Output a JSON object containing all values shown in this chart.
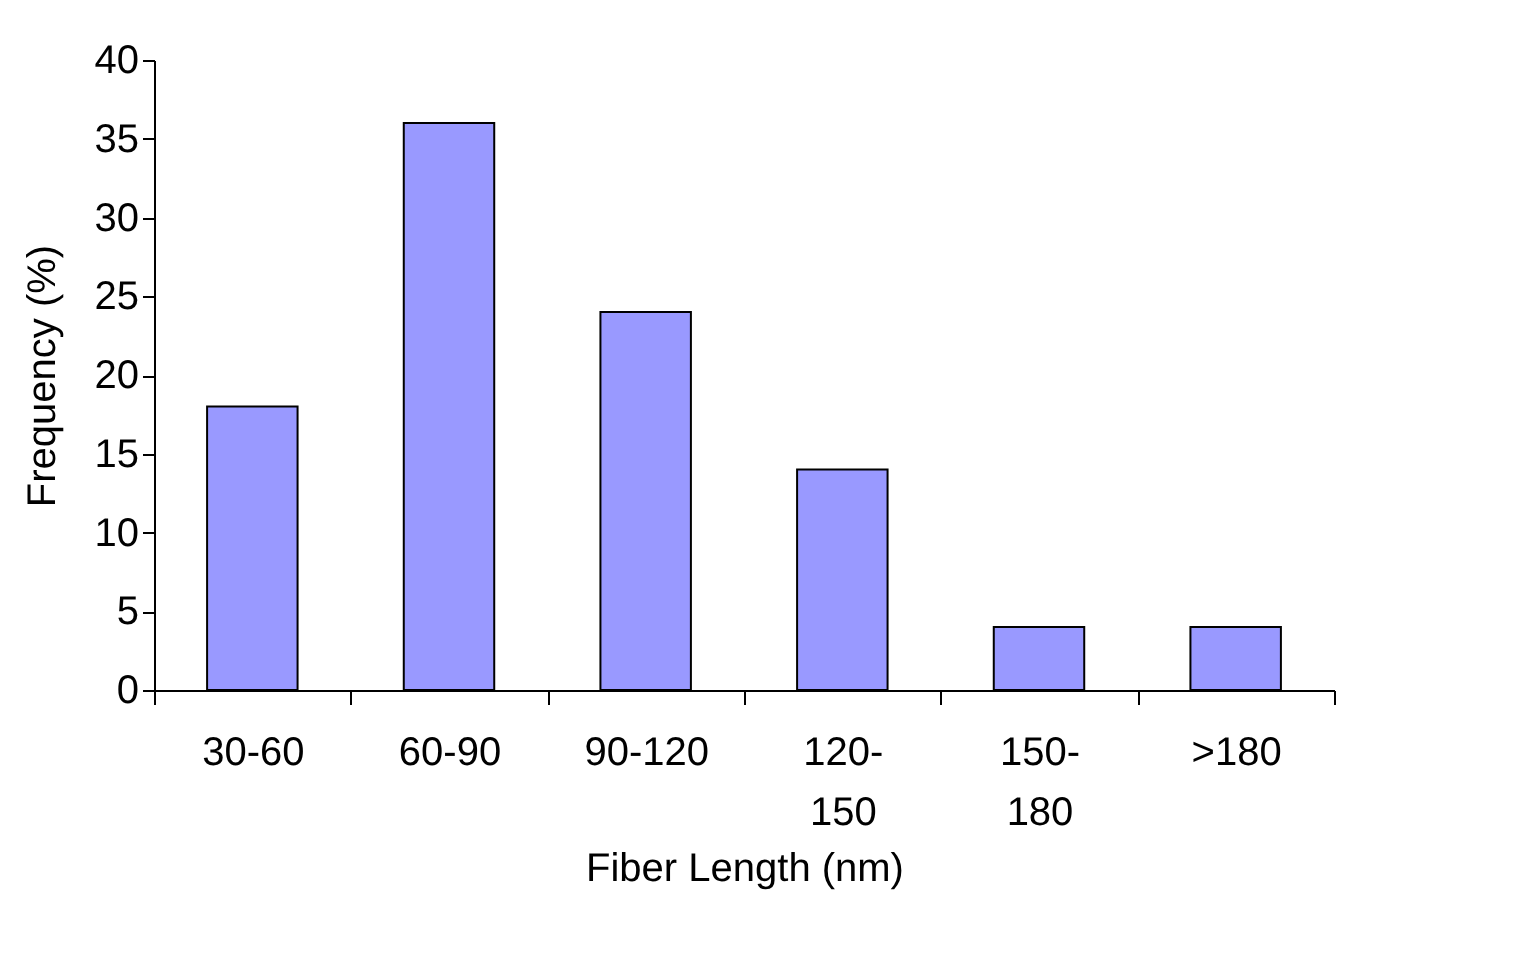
{
  "chart_data": {
    "type": "bar",
    "xlabel": "Fiber Length (nm)",
    "ylabel": "Frequency (%)",
    "categories": [
      "30-60",
      "60-90",
      "90-120",
      "120-150",
      "150-180",
      ">180"
    ],
    "values": [
      18,
      36,
      24,
      14,
      4,
      4
    ],
    "color": "#9999ff",
    "ylim": [
      0,
      40
    ],
    "yticks": [
      0,
      5,
      10,
      15,
      20,
      25,
      30,
      35,
      40
    ],
    "grid": false
  }
}
